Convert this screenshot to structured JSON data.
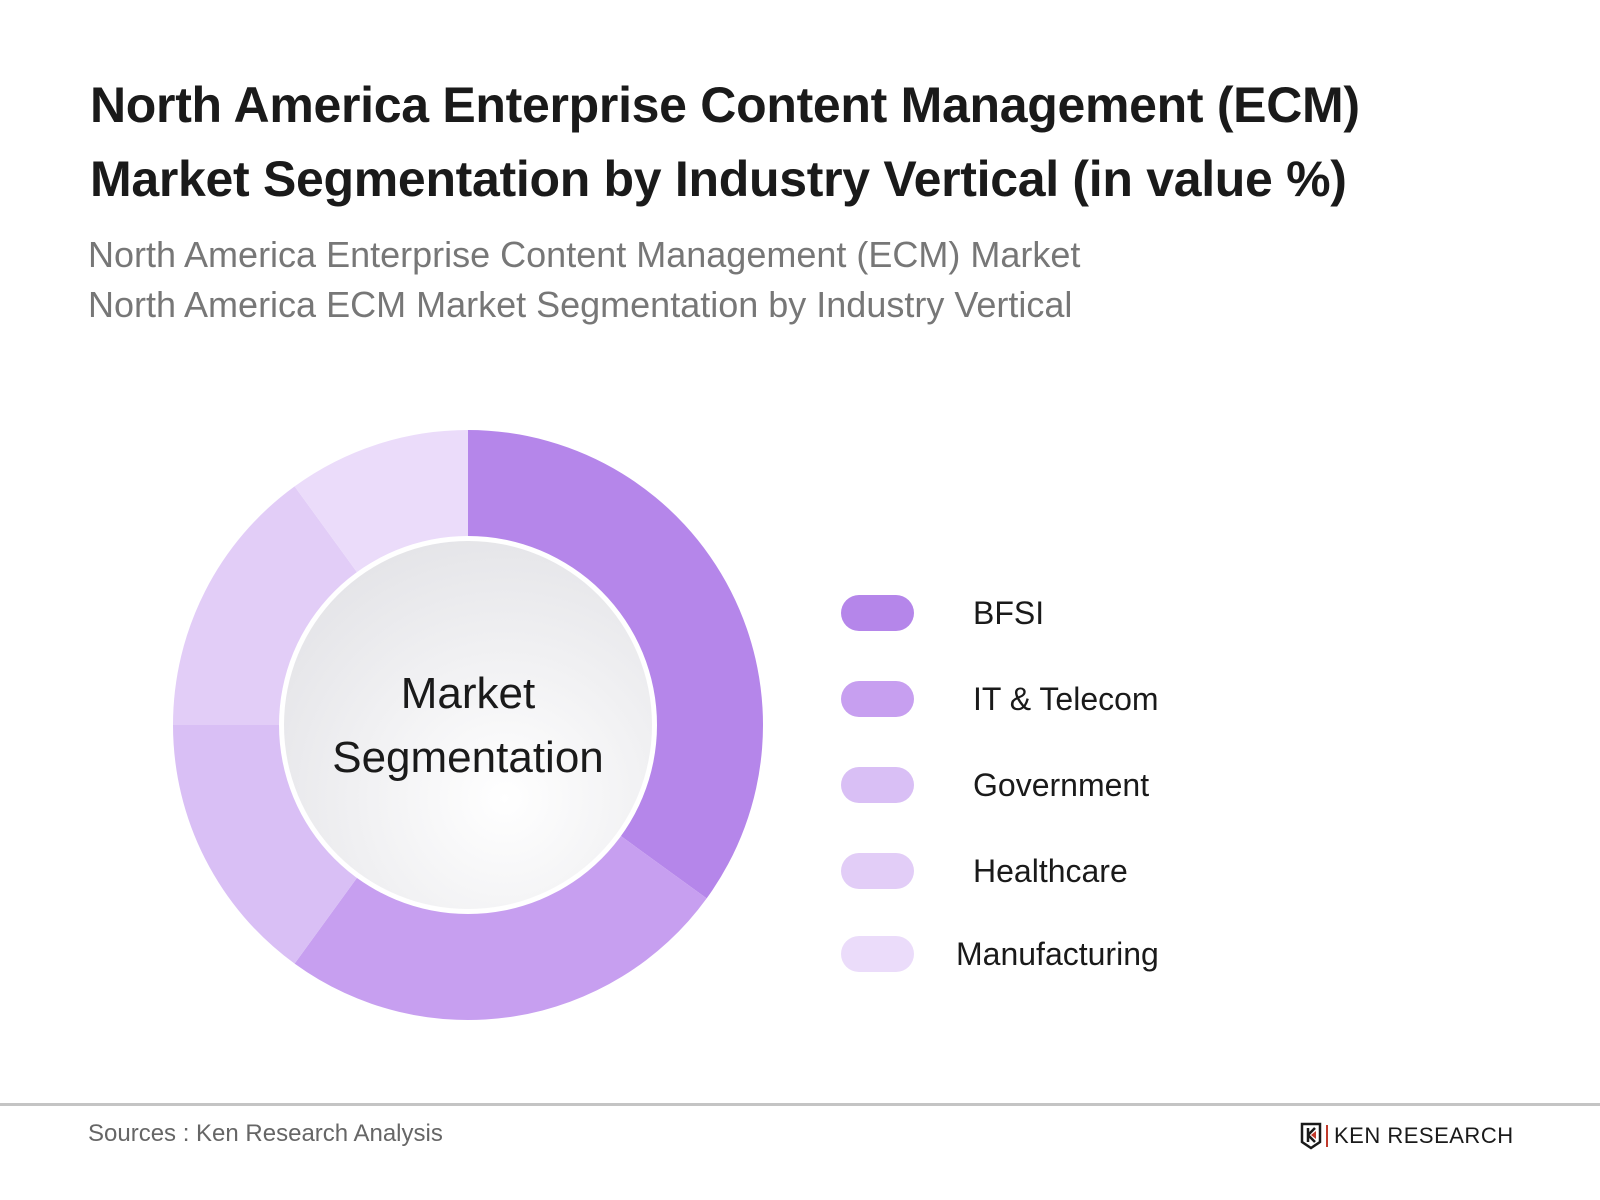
{
  "title_lines": [
    "North America Enterprise Content Management (ECM)",
    "Market Segmentation by Industry Vertical  (in value %)"
  ],
  "subtitle_lines": [
    "North America Enterprise Content Management (ECM) Market",
    "North America ECM Market Segmentation by Industry Vertical"
  ],
  "chart_data": {
    "type": "pie",
    "variant": "donut",
    "center_label": [
      "Market",
      "Segmentation"
    ],
    "categories": [
      "BFSI",
      "IT & Telecom",
      "Government",
      "Healthcare",
      "Manufacturing"
    ],
    "values": [
      35,
      25,
      15,
      15,
      10
    ],
    "colors": [
      "#b586ea",
      "#c79ff0",
      "#d9bff5",
      "#e2cdf7",
      "#ebdcfa"
    ],
    "legend_position": "right"
  },
  "footer": {
    "source": "Sources : Ken Research Analysis",
    "logo_text": "KEN RESEARCH"
  }
}
